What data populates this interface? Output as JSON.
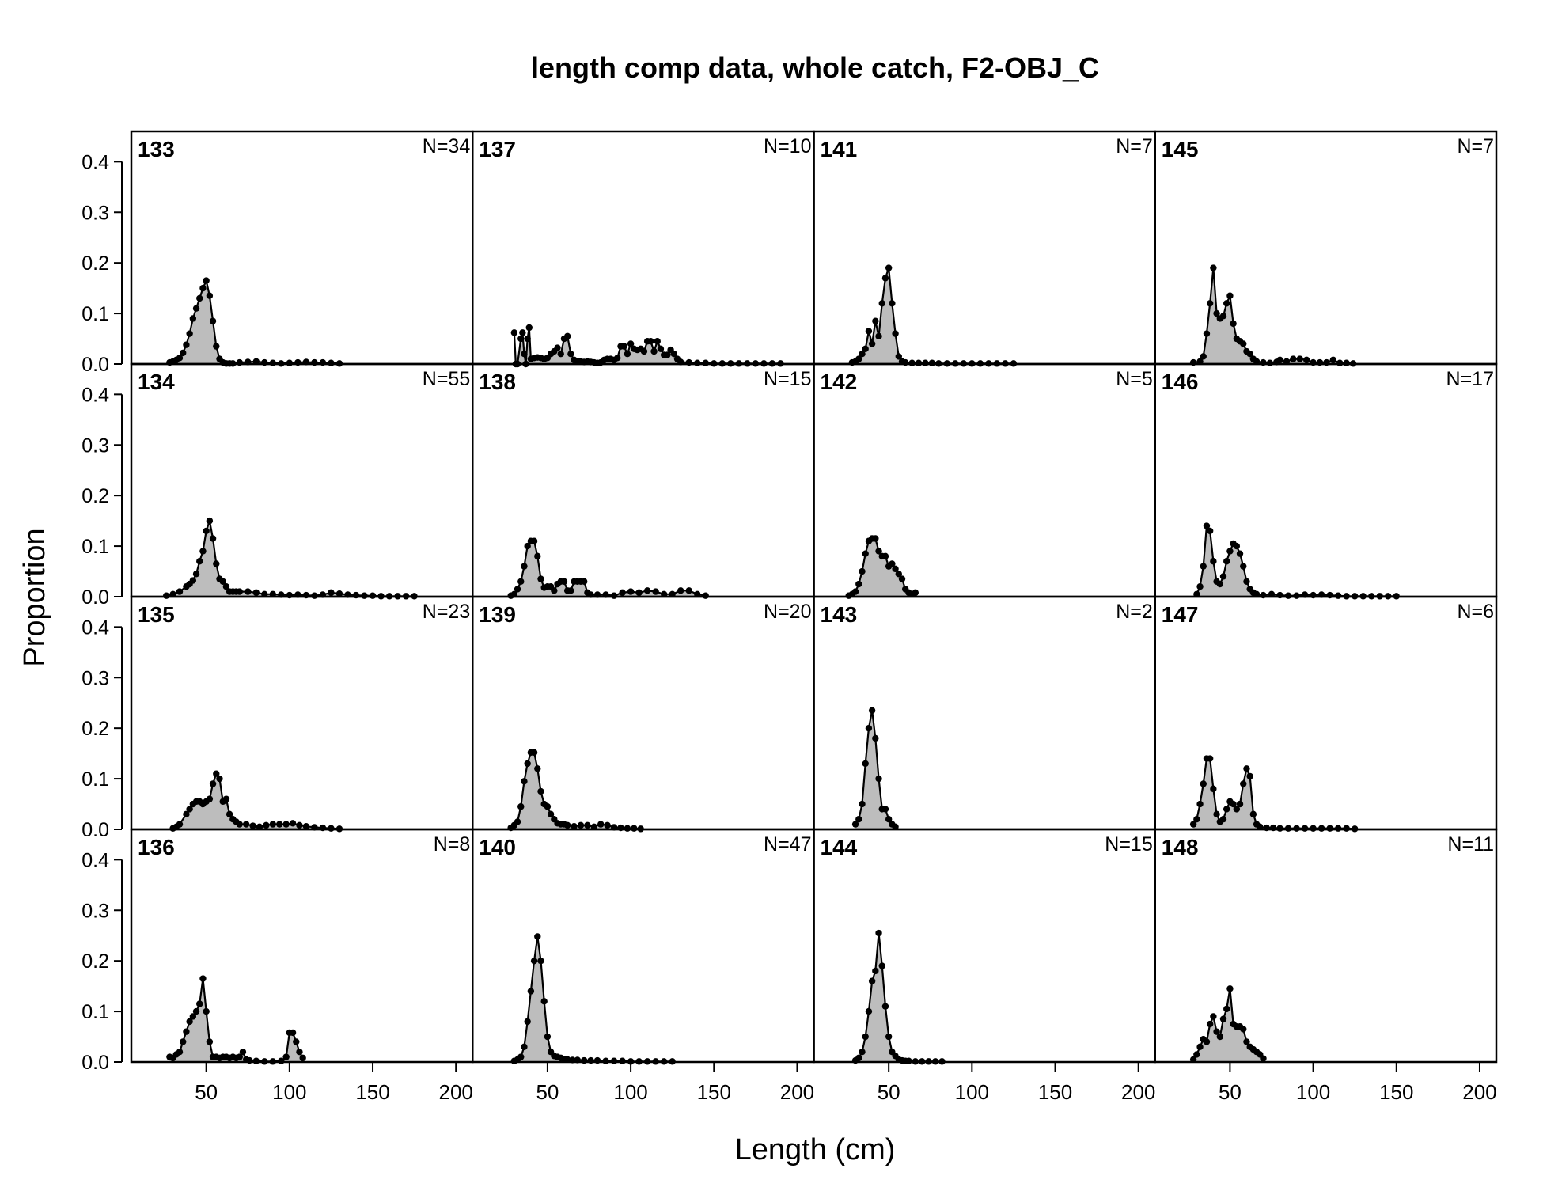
{
  "title": "length comp data, whole catch, F2-OBJ_C",
  "xlabel": "Length (cm)",
  "ylabel": "Proportion",
  "x_ticks": [
    50,
    100,
    150,
    200
  ],
  "y_ticks": [
    "0.0",
    "0.1",
    "0.2",
    "0.3",
    "0.4"
  ],
  "colors": {
    "fill": "#bdbdbd",
    "line": "#000000",
    "frame": "#000000"
  },
  "chart_data": {
    "type": "area",
    "layout": "4x4 panels, column-major",
    "xlim": [
      5,
      210
    ],
    "ylim": [
      0,
      0.46
    ],
    "grid": false,
    "panels": [
      {
        "id": "133",
        "n": "N=34",
        "x": [
          28,
          30,
          32,
          34,
          36,
          38,
          40,
          42,
          44,
          46,
          48,
          50,
          52,
          54,
          56,
          58,
          60,
          62,
          64,
          66,
          70,
          75,
          80,
          85,
          90,
          95,
          100,
          105,
          110,
          115,
          120,
          125,
          130
        ],
        "y": [
          0.003,
          0.005,
          0.008,
          0.012,
          0.022,
          0.038,
          0.06,
          0.09,
          0.11,
          0.13,
          0.15,
          0.165,
          0.135,
          0.085,
          0.035,
          0.01,
          0.003,
          0.001,
          0.001,
          0.001,
          0.003,
          0.004,
          0.005,
          0.003,
          0.002,
          0.001,
          0.002,
          0.003,
          0.004,
          0.003,
          0.003,
          0.002,
          0.001
        ]
      },
      {
        "id": "134",
        "n": "N=55",
        "x": [
          26,
          30,
          34,
          38,
          40,
          42,
          44,
          46,
          48,
          50,
          52,
          54,
          56,
          58,
          60,
          62,
          64,
          66,
          68,
          70,
          75,
          80,
          85,
          90,
          95,
          100,
          105,
          110,
          115,
          120,
          125,
          130,
          135,
          140,
          145,
          150,
          155,
          160,
          165,
          170,
          175
        ],
        "y": [
          0.002,
          0.005,
          0.01,
          0.02,
          0.025,
          0.032,
          0.045,
          0.07,
          0.09,
          0.13,
          0.15,
          0.115,
          0.065,
          0.035,
          0.03,
          0.02,
          0.01,
          0.01,
          0.01,
          0.01,
          0.01,
          0.008,
          0.005,
          0.005,
          0.004,
          0.003,
          0.004,
          0.003,
          0.002,
          0.004,
          0.008,
          0.006,
          0.004,
          0.003,
          0.002,
          0.002,
          0.001,
          0.001,
          0.001,
          0.001,
          0.001
        ]
      },
      {
        "id": "135",
        "n": "N=23",
        "x": [
          30,
          32,
          34,
          38,
          40,
          42,
          44,
          46,
          48,
          50,
          52,
          54,
          56,
          58,
          60,
          62,
          64,
          66,
          68,
          70,
          74,
          78,
          82,
          86,
          90,
          94,
          98,
          102,
          106,
          110,
          115,
          120,
          125,
          130
        ],
        "y": [
          0.002,
          0.005,
          0.01,
          0.03,
          0.04,
          0.05,
          0.055,
          0.055,
          0.05,
          0.055,
          0.06,
          0.09,
          0.11,
          0.1,
          0.055,
          0.06,
          0.03,
          0.02,
          0.015,
          0.01,
          0.01,
          0.007,
          0.005,
          0.008,
          0.01,
          0.01,
          0.01,
          0.012,
          0.008,
          0.006,
          0.004,
          0.003,
          0.002,
          0.001
        ]
      },
      {
        "id": "136",
        "n": "N=8",
        "x": [
          28,
          30,
          32,
          34,
          36,
          38,
          40,
          42,
          44,
          46,
          48,
          50,
          52,
          54,
          56,
          58,
          60,
          62,
          64,
          66,
          68,
          70,
          72,
          74,
          76,
          80,
          85,
          90,
          95,
          98,
          100,
          102,
          104,
          106,
          108
        ],
        "y": [
          0.01,
          0.008,
          0.015,
          0.02,
          0.04,
          0.06,
          0.08,
          0.09,
          0.1,
          0.115,
          0.165,
          0.1,
          0.04,
          0.01,
          0.01,
          0.008,
          0.01,
          0.01,
          0.008,
          0.01,
          0.008,
          0.01,
          0.02,
          0.005,
          0.003,
          0.002,
          0.001,
          0.001,
          0.002,
          0.01,
          0.058,
          0.058,
          0.04,
          0.02,
          0.008
        ]
      },
      {
        "id": "137",
        "n": "N=10",
        "x": [
          30,
          31,
          32,
          34,
          35,
          36,
          37,
          38,
          39,
          40,
          42,
          44,
          46,
          48,
          50,
          52,
          54,
          56,
          58,
          60,
          62,
          64,
          66,
          68,
          70,
          72,
          74,
          76,
          78,
          80,
          82,
          84,
          86,
          88,
          90,
          92,
          94,
          96,
          98,
          100,
          102,
          104,
          106,
          108,
          110,
          112,
          114,
          116,
          118,
          120,
          122,
          124,
          126,
          128,
          130,
          135,
          140,
          145,
          150,
          155,
          160,
          165,
          170,
          175,
          180,
          185,
          190
        ],
        "y": [
          0.062,
          0.0,
          0.0,
          0.05,
          0.062,
          0.02,
          0.0,
          0.05,
          0.072,
          0.01,
          0.012,
          0.013,
          0.012,
          0.01,
          0.012,
          0.02,
          0.025,
          0.032,
          0.02,
          0.05,
          0.055,
          0.02,
          0.008,
          0.006,
          0.005,
          0.004,
          0.005,
          0.004,
          0.003,
          0.002,
          0.003,
          0.008,
          0.01,
          0.01,
          0.008,
          0.012,
          0.035,
          0.035,
          0.02,
          0.04,
          0.03,
          0.028,
          0.03,
          0.025,
          0.045,
          0.045,
          0.025,
          0.045,
          0.03,
          0.018,
          0.018,
          0.028,
          0.02,
          0.01,
          0.004,
          0.003,
          0.002,
          0.002,
          0.001,
          0.001,
          0.001,
          0.001,
          0.001,
          0.001,
          0.001,
          0.001,
          0.001
        ]
      },
      {
        "id": "138",
        "n": "N=15",
        "x": [
          28,
          30,
          32,
          34,
          36,
          38,
          40,
          42,
          44,
          46,
          48,
          50,
          52,
          54,
          56,
          58,
          60,
          62,
          64,
          66,
          68,
          70,
          72,
          74,
          76,
          80,
          85,
          90,
          95,
          100,
          105,
          110,
          115,
          120,
          125,
          130,
          135,
          140,
          145
        ],
        "y": [
          0.002,
          0.005,
          0.015,
          0.03,
          0.06,
          0.1,
          0.11,
          0.11,
          0.08,
          0.035,
          0.018,
          0.02,
          0.02,
          0.012,
          0.025,
          0.03,
          0.03,
          0.012,
          0.012,
          0.03,
          0.03,
          0.03,
          0.03,
          0.008,
          0.004,
          0.004,
          0.004,
          0.002,
          0.008,
          0.01,
          0.008,
          0.012,
          0.01,
          0.005,
          0.005,
          0.012,
          0.012,
          0.005,
          0.002
        ]
      },
      {
        "id": "139",
        "n": "N=20",
        "x": [
          28,
          30,
          32,
          34,
          36,
          38,
          40,
          42,
          44,
          46,
          48,
          50,
          52,
          54,
          56,
          58,
          60,
          62,
          66,
          70,
          74,
          78,
          82,
          86,
          90,
          94,
          98,
          102,
          106
        ],
        "y": [
          0.003,
          0.008,
          0.015,
          0.045,
          0.095,
          0.13,
          0.152,
          0.152,
          0.12,
          0.075,
          0.05,
          0.045,
          0.03,
          0.02,
          0.012,
          0.01,
          0.01,
          0.008,
          0.006,
          0.008,
          0.008,
          0.005,
          0.01,
          0.008,
          0.004,
          0.003,
          0.002,
          0.002,
          0.001
        ]
      },
      {
        "id": "140",
        "n": "N=47",
        "x": [
          30,
          32,
          34,
          36,
          38,
          40,
          42,
          44,
          46,
          48,
          50,
          52,
          54,
          56,
          58,
          60,
          62,
          65,
          68,
          72,
          76,
          80,
          85,
          90,
          95,
          100,
          105,
          110,
          115,
          120,
          125
        ],
        "y": [
          0.002,
          0.005,
          0.01,
          0.03,
          0.08,
          0.14,
          0.2,
          0.248,
          0.2,
          0.12,
          0.05,
          0.02,
          0.012,
          0.01,
          0.008,
          0.006,
          0.005,
          0.004,
          0.004,
          0.003,
          0.003,
          0.003,
          0.002,
          0.002,
          0.002,
          0.001,
          0.001,
          0.001,
          0.001,
          0.001,
          0.001
        ]
      },
      {
        "id": "141",
        "n": "N=7",
        "x": [
          28,
          30,
          32,
          34,
          36,
          38,
          40,
          42,
          44,
          46,
          48,
          50,
          52,
          54,
          56,
          58,
          60,
          64,
          68,
          72,
          76,
          80,
          85,
          90,
          95,
          100,
          105,
          110,
          115,
          120,
          125
        ],
        "y": [
          0.003,
          0.005,
          0.01,
          0.02,
          0.03,
          0.065,
          0.04,
          0.085,
          0.055,
          0.12,
          0.17,
          0.19,
          0.12,
          0.06,
          0.015,
          0.005,
          0.003,
          0.002,
          0.002,
          0.002,
          0.002,
          0.001,
          0.001,
          0.001,
          0.001,
          0.001,
          0.001,
          0.001,
          0.001,
          0.001,
          0.001
        ]
      },
      {
        "id": "142",
        "n": "N=5",
        "x": [
          26,
          28,
          30,
          32,
          34,
          36,
          38,
          40,
          42,
          44,
          46,
          48,
          50,
          52,
          54,
          56,
          58,
          60,
          62,
          64,
          66
        ],
        "y": [
          0.002,
          0.005,
          0.01,
          0.025,
          0.05,
          0.085,
          0.11,
          0.115,
          0.115,
          0.09,
          0.08,
          0.08,
          0.06,
          0.065,
          0.055,
          0.045,
          0.035,
          0.015,
          0.008,
          0.005,
          0.008
        ]
      },
      {
        "id": "143",
        "n": "N=2",
        "x": [
          30,
          32,
          34,
          36,
          38,
          40,
          42,
          44,
          46,
          48,
          50,
          52,
          54
        ],
        "y": [
          0.01,
          0.02,
          0.05,
          0.13,
          0.2,
          0.235,
          0.18,
          0.1,
          0.04,
          0.04,
          0.02,
          0.01,
          0.005
        ]
      },
      {
        "id": "144",
        "n": "N=15",
        "x": [
          30,
          32,
          34,
          36,
          38,
          40,
          42,
          44,
          46,
          48,
          50,
          52,
          54,
          56,
          58,
          60,
          62,
          66,
          70,
          74,
          78,
          82
        ],
        "y": [
          0.003,
          0.008,
          0.02,
          0.05,
          0.1,
          0.16,
          0.18,
          0.255,
          0.19,
          0.11,
          0.05,
          0.02,
          0.012,
          0.005,
          0.003,
          0.002,
          0.002,
          0.001,
          0.001,
          0.001,
          0.001,
          0.001
        ]
      },
      {
        "id": "145",
        "n": "N=7",
        "x": [
          28,
          32,
          34,
          36,
          38,
          40,
          42,
          44,
          46,
          48,
          50,
          52,
          54,
          56,
          58,
          60,
          62,
          64,
          66,
          70,
          74,
          78,
          80,
          84,
          88,
          92,
          96,
          100,
          104,
          108,
          112,
          116,
          120,
          124
        ],
        "y": [
          0.003,
          0.005,
          0.015,
          0.06,
          0.12,
          0.19,
          0.1,
          0.09,
          0.095,
          0.12,
          0.135,
          0.08,
          0.05,
          0.045,
          0.04,
          0.025,
          0.02,
          0.01,
          0.005,
          0.003,
          0.002,
          0.004,
          0.008,
          0.005,
          0.01,
          0.01,
          0.008,
          0.003,
          0.003,
          0.003,
          0.008,
          0.002,
          0.002,
          0.001
        ]
      },
      {
        "id": "146",
        "n": "N=17",
        "x": [
          30,
          32,
          34,
          36,
          38,
          40,
          42,
          44,
          46,
          48,
          50,
          52,
          54,
          56,
          58,
          60,
          62,
          64,
          66,
          70,
          75,
          80,
          85,
          90,
          95,
          100,
          105,
          110,
          115,
          120,
          125,
          130,
          135,
          140,
          145,
          150
        ],
        "y": [
          0.005,
          0.02,
          0.06,
          0.14,
          0.13,
          0.07,
          0.03,
          0.025,
          0.04,
          0.07,
          0.09,
          0.105,
          0.1,
          0.085,
          0.06,
          0.03,
          0.015,
          0.008,
          0.005,
          0.003,
          0.005,
          0.003,
          0.002,
          0.002,
          0.004,
          0.003,
          0.004,
          0.003,
          0.002,
          0.001,
          0.001,
          0.001,
          0.001,
          0.001,
          0.001,
          0.001
        ]
      },
      {
        "id": "147",
        "n": "N=6",
        "x": [
          28,
          30,
          32,
          34,
          36,
          38,
          40,
          42,
          44,
          46,
          48,
          50,
          52,
          54,
          56,
          58,
          60,
          62,
          64,
          66,
          68,
          72,
          76,
          80,
          85,
          90,
          95,
          100,
          105,
          110,
          115,
          120,
          125
        ],
        "y": [
          0.01,
          0.02,
          0.05,
          0.09,
          0.14,
          0.14,
          0.08,
          0.03,
          0.015,
          0.02,
          0.04,
          0.055,
          0.05,
          0.04,
          0.05,
          0.09,
          0.12,
          0.105,
          0.03,
          0.01,
          0.005,
          0.003,
          0.003,
          0.002,
          0.002,
          0.002,
          0.002,
          0.002,
          0.002,
          0.002,
          0.002,
          0.002,
          0.001
        ]
      },
      {
        "id": "148",
        "n": "N=11",
        "x": [
          28,
          30,
          32,
          34,
          36,
          38,
          40,
          42,
          44,
          46,
          48,
          50,
          52,
          54,
          56,
          58,
          60,
          62,
          64,
          66,
          68,
          70
        ],
        "y": [
          0.005,
          0.015,
          0.03,
          0.045,
          0.04,
          0.075,
          0.09,
          0.06,
          0.05,
          0.085,
          0.105,
          0.145,
          0.075,
          0.07,
          0.07,
          0.065,
          0.04,
          0.03,
          0.025,
          0.02,
          0.015,
          0.007
        ]
      }
    ]
  }
}
